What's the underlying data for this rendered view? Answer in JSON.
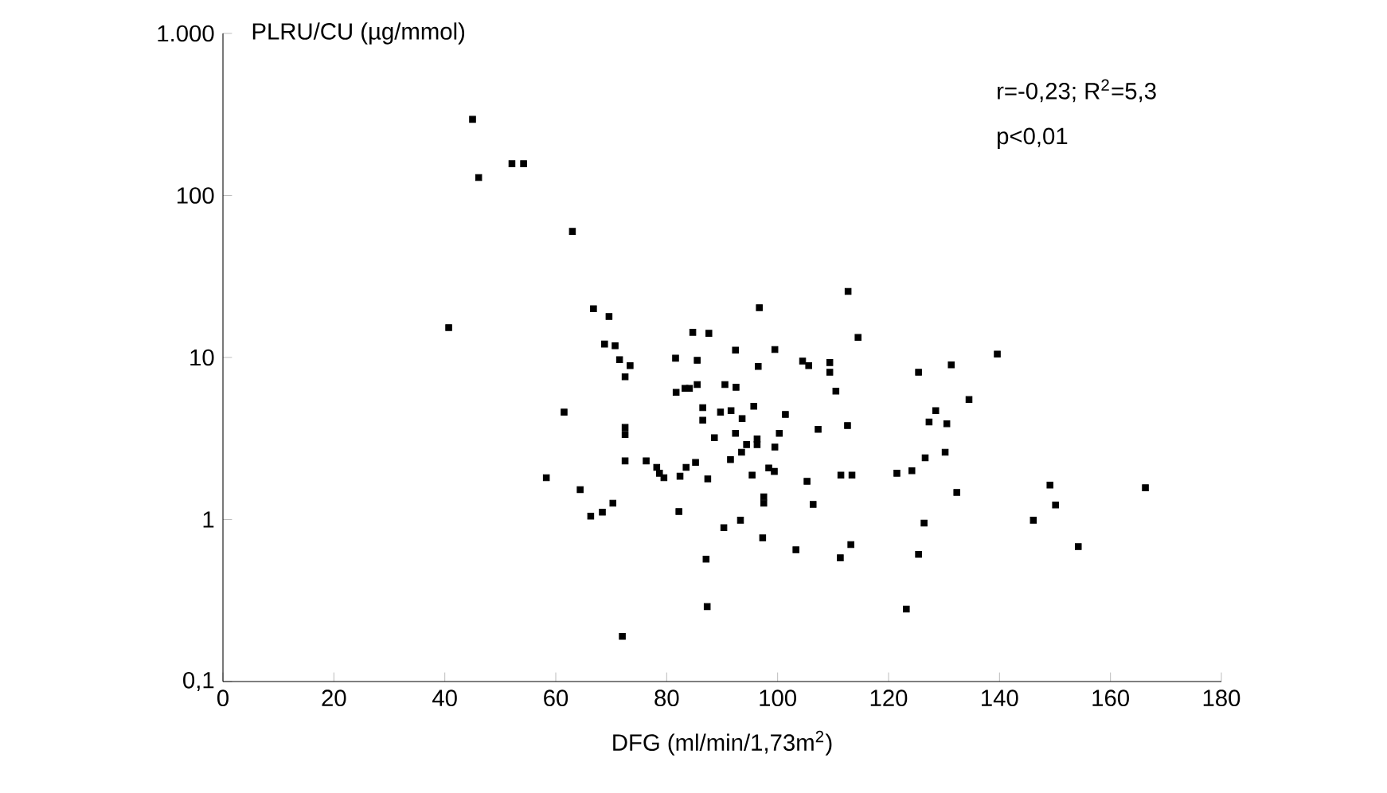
{
  "chart_data": {
    "type": "scatter",
    "xlabel": "DFG (ml/min/1,73m$^{2}$)",
    "ylabel": "PLRU/CU (µg/mmol)",
    "annotations": [
      "r=-0,23; R$^{2}$=5,3",
      "p<0,01"
    ],
    "log": "y",
    "marker": "square",
    "xlim": [
      0,
      180
    ],
    "ylim": [
      0.1,
      1000
    ],
    "xticks": [
      0,
      20,
      40,
      60,
      80,
      100,
      120,
      140,
      160,
      180
    ],
    "yticks": [
      {
        "value": 0.1,
        "label": "0,1"
      },
      1,
      10,
      100,
      {
        "value": 1000,
        "label": "1.000"
      }
    ],
    "series": [
      {
        "color": "#000000",
        "x": [
          40.7,
          45.0,
          46.1,
          52.1,
          54.2,
          58.3,
          61.5,
          63.0,
          64.4,
          66.3,
          66.8,
          68.4,
          68.8,
          69.6,
          70.3,
          70.7,
          71.5,
          72.0,
          72.5,
          72.5,
          72.5,
          72.5,
          73.4,
          76.3,
          78.2,
          78.7,
          79.5,
          81.6,
          81.7,
          82.2,
          82.4,
          83.3,
          83.5,
          84.1,
          84.7,
          85.2,
          85.5,
          85.5,
          86.5,
          86.5,
          87.1,
          87.3,
          87.4,
          87.6,
          88.6,
          89.7,
          90.3,
          90.5,
          91.5,
          91.6,
          92.4,
          92.4,
          92.5,
          93.3,
          93.5,
          93.6,
          94.4,
          95.4,
          95.7,
          96.3,
          96.3,
          96.5,
          96.7,
          97.3,
          97.5,
          97.5,
          98.4,
          99.4,
          99.5,
          99.5,
          100.3,
          101.4,
          103.3,
          104.5,
          105.3,
          105.6,
          106.4,
          107.3,
          109.4,
          109.4,
          110.5,
          111.3,
          111.4,
          112.6,
          112.7,
          113.2,
          113.4,
          114.5,
          121.5,
          124.2,
          123.2,
          125.4,
          125.4,
          126.4,
          126.6,
          127.3,
          128.5,
          130.2,
          130.5,
          131.3,
          132.3,
          134.5,
          139.6,
          146.1,
          149.1,
          150.1,
          154.2,
          166.3
        ],
        "values": [
          15.3,
          295,
          129,
          157,
          157,
          1.81,
          4.6,
          60,
          1.53,
          1.05,
          20,
          1.11,
          12.1,
          17.9,
          1.26,
          11.8,
          9.7,
          0.19,
          7.6,
          3.7,
          3.35,
          2.3,
          8.9,
          2.3,
          2.1,
          1.93,
          1.81,
          9.9,
          6.1,
          1.12,
          1.85,
          6.45,
          2.1,
          6.45,
          14.3,
          2.25,
          9.6,
          6.8,
          4.9,
          4.1,
          0.57,
          0.29,
          1.78,
          14.1,
          3.2,
          4.6,
          0.89,
          6.8,
          2.34,
          4.7,
          11.1,
          3.4,
          6.55,
          0.99,
          2.6,
          4.2,
          2.9,
          1.88,
          5.0,
          3.14,
          2.9,
          8.8,
          20.3,
          0.77,
          1.38,
          1.26,
          2.08,
          1.98,
          11.2,
          2.8,
          3.4,
          4.45,
          0.65,
          9.5,
          1.72,
          8.9,
          1.24,
          3.6,
          9.3,
          8.1,
          6.2,
          0.58,
          1.88,
          3.8,
          25.6,
          0.7,
          1.88,
          13.3,
          1.93,
          2.0,
          0.28,
          8.1,
          0.61,
          0.95,
          2.4,
          4.0,
          4.7,
          2.6,
          3.9,
          9.0,
          1.47,
          5.5,
          10.5,
          0.99,
          1.63,
          1.23,
          0.68,
          1.57
        ]
      }
    ]
  }
}
